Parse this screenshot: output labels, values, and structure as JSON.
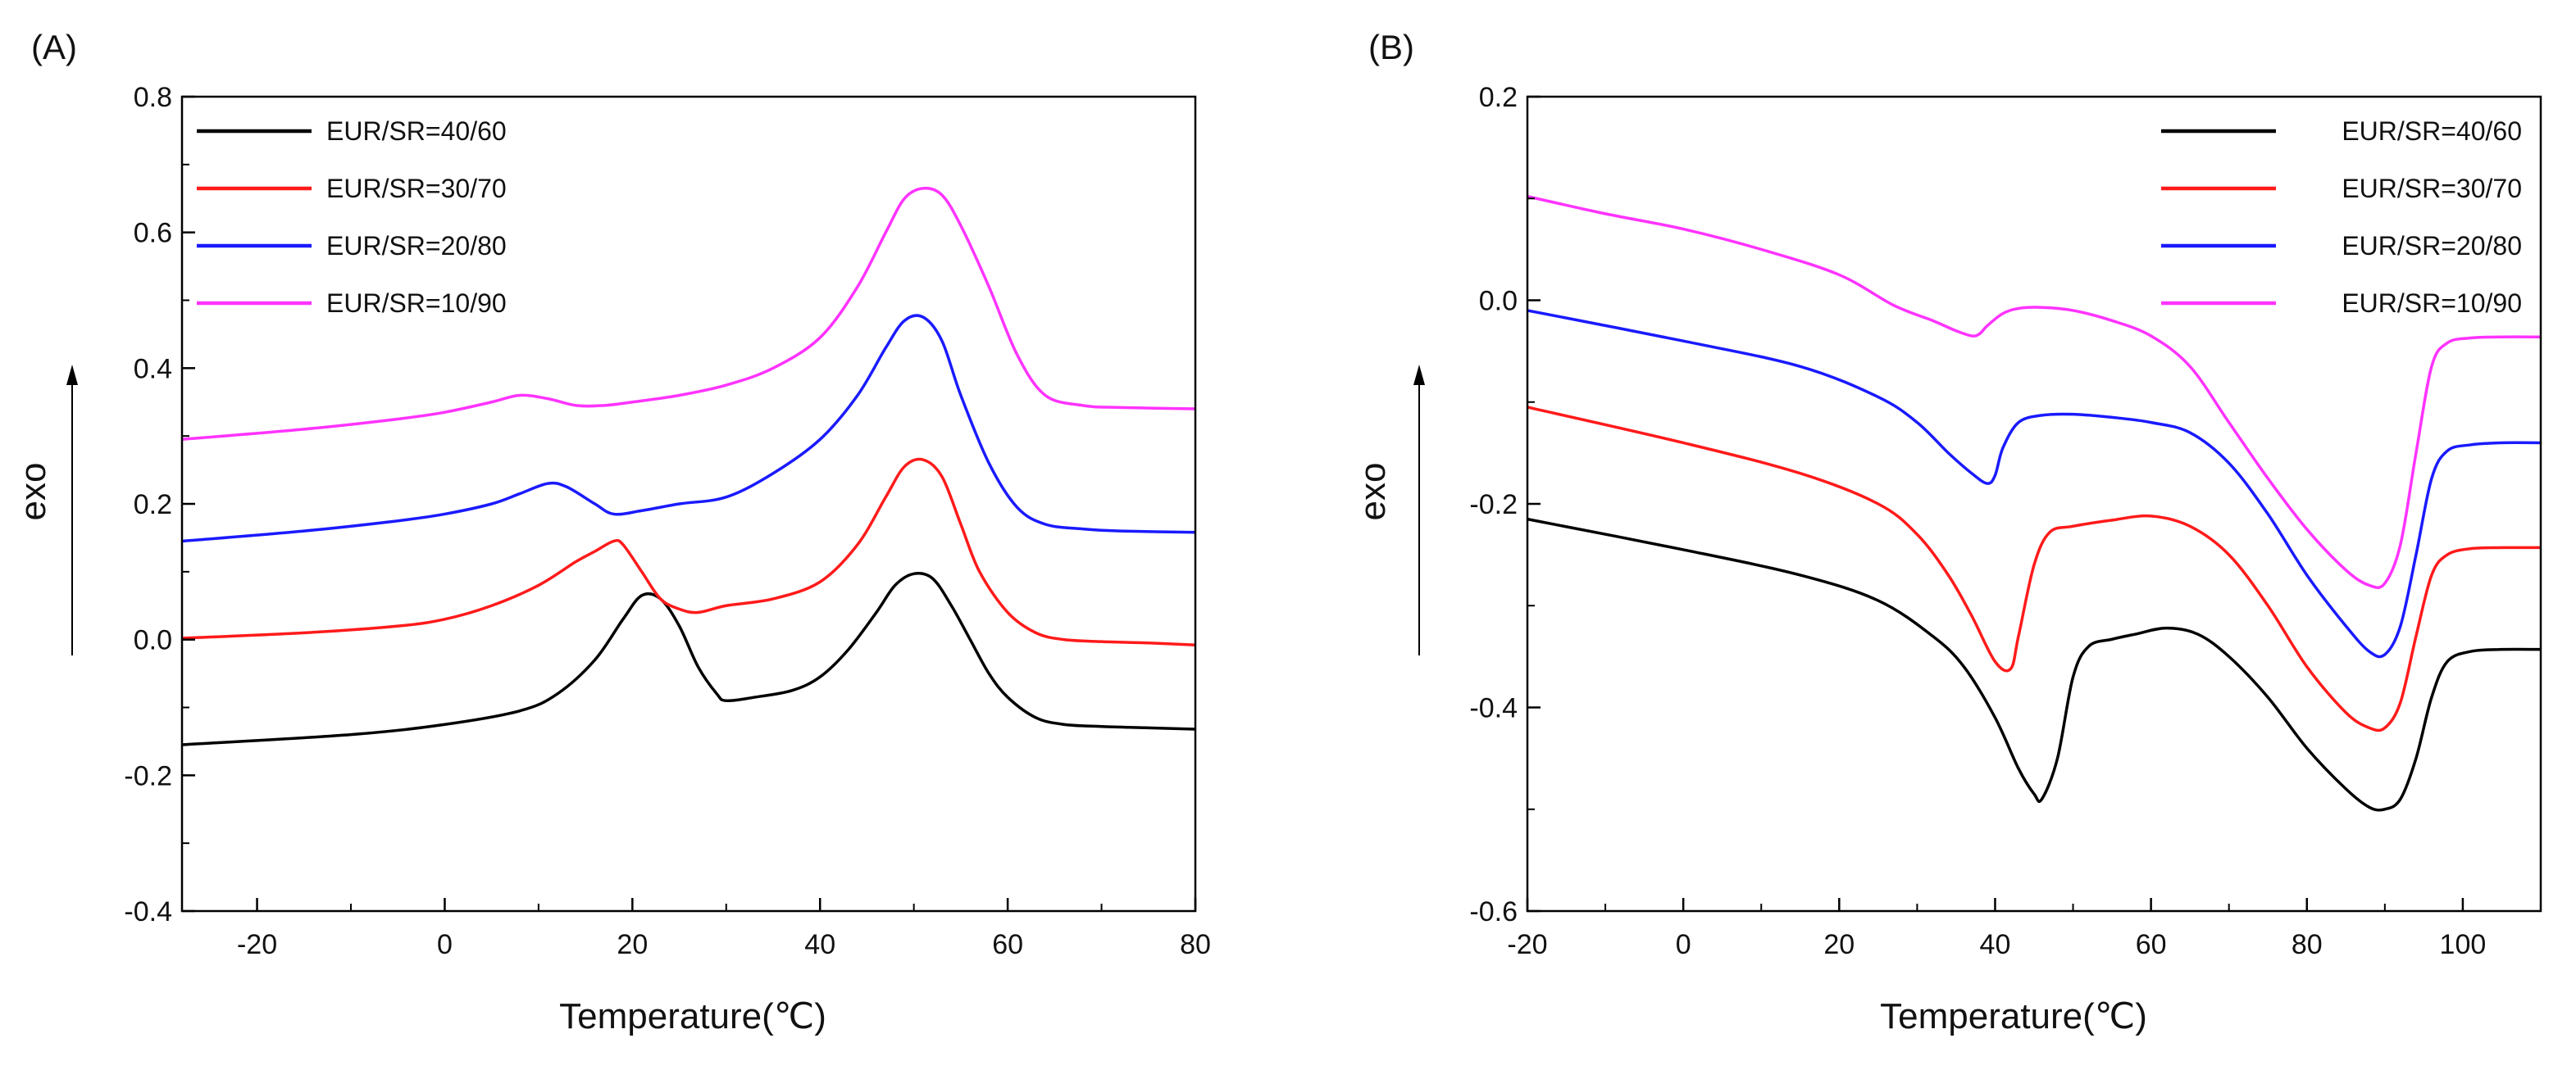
{
  "colors": {
    "black": "#000000",
    "red": "#ff1a1a",
    "blue": "#1a1aff",
    "magenta": "#ff33ff"
  },
  "chart_data": [
    {
      "panel_label": "(A)",
      "type": "line",
      "xlabel": "Temperature(℃)",
      "ylabel": "exo",
      "xlim": [
        -28,
        80
      ],
      "ylim": [
        -0.4,
        0.8
      ],
      "xticks": [
        -20,
        0,
        20,
        40,
        60,
        80
      ],
      "xtick_labels": [
        "-20",
        "0",
        "20",
        "40",
        "60",
        "80"
      ],
      "yticks": [
        -0.4,
        -0.2,
        0.0,
        0.2,
        0.4,
        0.6,
        0.8
      ],
      "ytick_labels": [
        "-0.4",
        "-0.2",
        "0.0",
        "0.2",
        "0.4",
        "0.6",
        "0.8"
      ],
      "legend_position": "top-left",
      "series": [
        {
          "name": "EUR/SR=40/60",
          "color": "#000000",
          "x": [
            -28,
            -10,
            0,
            8,
            12,
            16,
            19,
            21,
            23,
            25,
            27,
            29,
            30,
            33,
            37,
            40,
            43,
            46,
            48,
            50,
            52,
            54,
            56,
            58,
            60,
            63,
            66,
            70,
            75,
            80
          ],
          "y": [
            -0.155,
            -0.14,
            -0.125,
            -0.105,
            -0.08,
            -0.03,
            0.03,
            0.065,
            0.06,
            0.02,
            -0.04,
            -0.08,
            -0.09,
            -0.085,
            -0.075,
            -0.055,
            -0.015,
            0.04,
            0.08,
            0.097,
            0.09,
            0.05,
            0.0,
            -0.05,
            -0.085,
            -0.115,
            -0.125,
            -0.128,
            -0.13,
            -0.132
          ]
        },
        {
          "name": "EUR/SR=30/70",
          "color": "#ff1a1a",
          "x": [
            -28,
            -15,
            -5,
            0,
            5,
            10,
            14,
            16,
            18,
            19,
            21,
            23,
            25,
            27,
            30,
            35,
            40,
            44,
            47,
            49,
            51,
            53,
            55,
            57,
            60,
            63,
            66,
            70,
            75,
            80
          ],
          "y": [
            0.002,
            0.01,
            0.02,
            0.03,
            0.05,
            0.08,
            0.115,
            0.13,
            0.145,
            0.14,
            0.1,
            0.06,
            0.045,
            0.04,
            0.05,
            0.06,
            0.085,
            0.14,
            0.21,
            0.255,
            0.265,
            0.24,
            0.17,
            0.1,
            0.04,
            0.01,
            0.0,
            -0.003,
            -0.005,
            -0.008
          ]
        },
        {
          "name": "EUR/SR=20/80",
          "color": "#1a1aff",
          "x": [
            -28,
            -15,
            -5,
            0,
            5,
            8,
            11,
            13,
            16,
            18,
            21,
            25,
            30,
            35,
            40,
            44,
            47,
            49,
            51,
            53,
            55,
            58,
            61,
            64,
            68,
            72,
            80
          ],
          "y": [
            0.145,
            0.16,
            0.175,
            0.185,
            0.2,
            0.215,
            0.23,
            0.225,
            0.2,
            0.185,
            0.19,
            0.2,
            0.21,
            0.245,
            0.295,
            0.36,
            0.43,
            0.47,
            0.475,
            0.44,
            0.36,
            0.26,
            0.195,
            0.17,
            0.163,
            0.16,
            0.158
          ]
        },
        {
          "name": "EUR/SR=10/90",
          "color": "#ff33ff",
          "x": [
            -28,
            -15,
            -5,
            0,
            5,
            8,
            11,
            14,
            17,
            20,
            25,
            30,
            35,
            40,
            44,
            47,
            49,
            51,
            53,
            55,
            58,
            61,
            64,
            68,
            72,
            80
          ],
          "y": [
            0.295,
            0.31,
            0.325,
            0.335,
            0.35,
            0.36,
            0.355,
            0.345,
            0.345,
            0.35,
            0.36,
            0.375,
            0.4,
            0.445,
            0.52,
            0.6,
            0.65,
            0.665,
            0.655,
            0.61,
            0.52,
            0.42,
            0.36,
            0.345,
            0.342,
            0.34
          ]
        }
      ]
    },
    {
      "panel_label": "(B)",
      "type": "line",
      "xlabel": "Temperature(℃)",
      "ylabel": "exo",
      "xlim": [
        -20,
        110
      ],
      "ylim": [
        -0.6,
        0.2
      ],
      "xticks": [
        -20,
        0,
        20,
        40,
        60,
        80,
        100
      ],
      "xtick_labels": [
        "-20",
        "0",
        "20",
        "40",
        "60",
        "80",
        "100"
      ],
      "yticks": [
        -0.6,
        -0.4,
        -0.2,
        0.0,
        0.2
      ],
      "ytick_labels": [
        "-0.6",
        "-0.4",
        "-0.2",
        "0.0",
        "0.2"
      ],
      "legend_position": "top-right",
      "series": [
        {
          "name": "EUR/SR=40/60",
          "color": "#000000",
          "x": [
            -20,
            0,
            15,
            25,
            32,
            36,
            40,
            43,
            45,
            46,
            48,
            50,
            52,
            55,
            58,
            62,
            66,
            70,
            75,
            80,
            85,
            88,
            90,
            92,
            94,
            96,
            98,
            101,
            105,
            110
          ],
          "y": [
            -0.215,
            -0.245,
            -0.27,
            -0.295,
            -0.33,
            -0.36,
            -0.41,
            -0.46,
            -0.485,
            -0.49,
            -0.45,
            -0.37,
            -0.34,
            -0.333,
            -0.328,
            -0.322,
            -0.328,
            -0.35,
            -0.39,
            -0.44,
            -0.48,
            -0.498,
            -0.5,
            -0.49,
            -0.45,
            -0.39,
            -0.355,
            -0.345,
            -0.343,
            -0.343
          ]
        },
        {
          "name": "EUR/SR=30/70",
          "color": "#ff1a1a",
          "x": [
            -20,
            0,
            15,
            25,
            30,
            34,
            37,
            40,
            42,
            43,
            45,
            47,
            50,
            55,
            60,
            65,
            70,
            75,
            80,
            85,
            88,
            90,
            92,
            94,
            96,
            98,
            101,
            105,
            110
          ],
          "y": [
            -0.105,
            -0.14,
            -0.17,
            -0.2,
            -0.23,
            -0.27,
            -0.31,
            -0.355,
            -0.362,
            -0.33,
            -0.26,
            -0.228,
            -0.222,
            -0.216,
            -0.212,
            -0.222,
            -0.25,
            -0.3,
            -0.36,
            -0.405,
            -0.42,
            -0.42,
            -0.395,
            -0.33,
            -0.27,
            -0.25,
            -0.244,
            -0.243,
            -0.243
          ]
        },
        {
          "name": "EUR/SR=20/80",
          "color": "#1a1aff",
          "x": [
            -20,
            0,
            15,
            25,
            30,
            34,
            37,
            39,
            40,
            41,
            43,
            46,
            50,
            55,
            60,
            65,
            70,
            75,
            80,
            85,
            88,
            90,
            92,
            94,
            96,
            98,
            101,
            105,
            110
          ],
          "y": [
            -0.01,
            -0.04,
            -0.065,
            -0.095,
            -0.12,
            -0.15,
            -0.17,
            -0.18,
            -0.172,
            -0.145,
            -0.12,
            -0.113,
            -0.112,
            -0.115,
            -0.12,
            -0.13,
            -0.16,
            -0.21,
            -0.27,
            -0.32,
            -0.345,
            -0.348,
            -0.32,
            -0.25,
            -0.175,
            -0.148,
            -0.142,
            -0.14,
            -0.14
          ]
        },
        {
          "name": "EUR/SR=10/90",
          "color": "#ff33ff",
          "x": [
            -20,
            -10,
            0,
            10,
            20,
            27,
            32,
            35,
            37,
            38,
            39,
            41,
            43,
            46,
            50,
            55,
            60,
            65,
            70,
            75,
            80,
            85,
            88,
            90,
            92,
            94,
            96,
            98,
            101,
            105,
            110
          ],
          "y": [
            0.102,
            0.085,
            0.07,
            0.05,
            0.025,
            -0.005,
            -0.02,
            -0.03,
            -0.035,
            -0.033,
            -0.025,
            -0.013,
            -0.008,
            -0.007,
            -0.01,
            -0.02,
            -0.035,
            -0.065,
            -0.12,
            -0.175,
            -0.225,
            -0.265,
            -0.28,
            -0.278,
            -0.24,
            -0.15,
            -0.065,
            -0.042,
            -0.037,
            -0.036,
            -0.036
          ]
        }
      ]
    }
  ]
}
